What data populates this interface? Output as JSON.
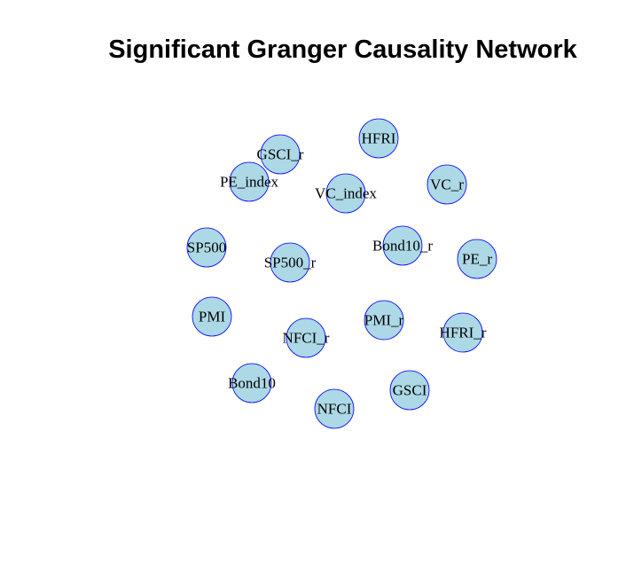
{
  "title": "Significant Granger Causality Network",
  "colors": {
    "node_fill": "#ADD8E6",
    "node_stroke": "#0000FF",
    "label": "#000000"
  },
  "network": {
    "nodes": [
      {
        "id": "HFRI",
        "label": "HFRI"
      },
      {
        "id": "GSCI_r",
        "label": "GSCI_r"
      },
      {
        "id": "PE_index",
        "label": "PE_index"
      },
      {
        "id": "VC_index",
        "label": "VC_index"
      },
      {
        "id": "VC_r",
        "label": "VC_r"
      },
      {
        "id": "SP500",
        "label": "SP500"
      },
      {
        "id": "Bond10_r",
        "label": "Bond10_r"
      },
      {
        "id": "SP500_r",
        "label": "SP500_r"
      },
      {
        "id": "PE_r",
        "label": "PE_r"
      },
      {
        "id": "PMI",
        "label": "PMI"
      },
      {
        "id": "PMI_r",
        "label": "PMI_r"
      },
      {
        "id": "NFCI_r",
        "label": "NFCI_r"
      },
      {
        "id": "HFRI_r",
        "label": "HFRI_r"
      },
      {
        "id": "Bond10",
        "label": "Bond10"
      },
      {
        "id": "GSCI",
        "label": "GSCI"
      },
      {
        "id": "NFCI",
        "label": "NFCI"
      }
    ],
    "edges": []
  }
}
